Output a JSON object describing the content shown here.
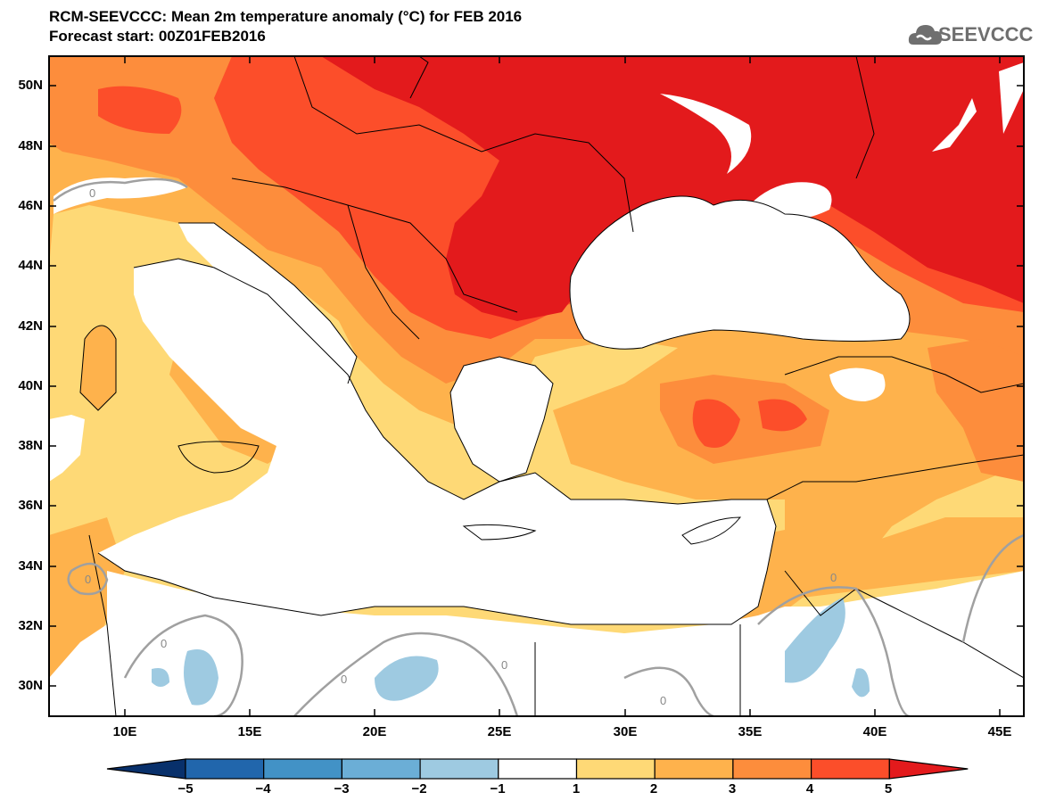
{
  "header": {
    "title": "RCM-SEEVCCC: Mean 2m temperature anomaly (°C) for FEB 2016",
    "subtitle": "Forecast start: 00Z01FEB2016"
  },
  "logo": {
    "text": "SEEVCCC",
    "icon": "cloud-logo-icon"
  },
  "map": {
    "lat_labels": [
      "50N",
      "48N",
      "46N",
      "44N",
      "42N",
      "40N",
      "38N",
      "36N",
      "34N",
      "32N",
      "30N"
    ],
    "lon_labels": [
      "10E",
      "15E",
      "20E",
      "25E",
      "30E",
      "35E",
      "40E",
      "45E"
    ],
    "contour_label": "0"
  },
  "colorbar": {
    "labels": [
      "−5",
      "−4",
      "−3",
      "−2",
      "−1",
      "1",
      "2",
      "3",
      "4",
      "5"
    ],
    "colors": [
      "#08306b",
      "#2166ac",
      "#4292c6",
      "#6baed6",
      "#9ecae1",
      "#ffffff",
      "#fed976",
      "#feb24c",
      "#fd8d3c",
      "#fc4e2a",
      "#e31a1c"
    ]
  }
}
